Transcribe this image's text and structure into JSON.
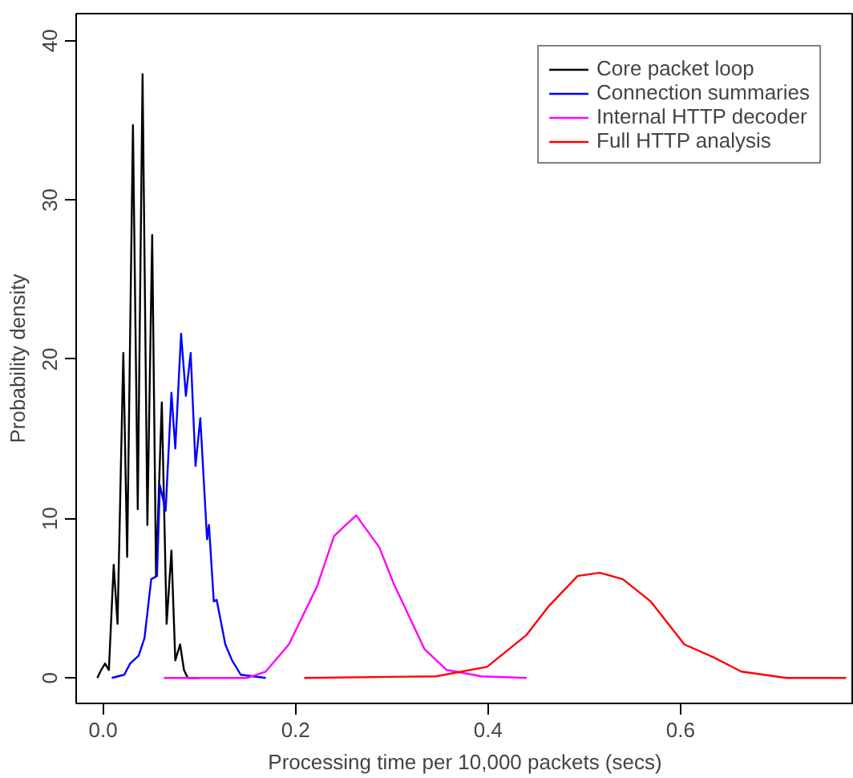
{
  "chart_data": {
    "type": "line",
    "xlabel": "Processing time per 10,000 packets (secs)",
    "ylabel": "Probability density",
    "xlim": [
      -0.028,
      0.78
    ],
    "ylim": [
      -1.6,
      41.7
    ],
    "xticks": [
      {
        "value": 0,
        "label": "0.0"
      },
      {
        "value": 0.2,
        "label": "0.2"
      },
      {
        "value": 0.4,
        "label": "0.4"
      },
      {
        "value": 0.6,
        "label": "0.6"
      }
    ],
    "yticks": [
      0,
      10,
      20,
      30,
      40
    ],
    "grid": false,
    "legend": "top right",
    "marker": "none",
    "line_style": "solid",
    "series": [
      {
        "name": "Core packet loop",
        "color": "#000000",
        "x": [
          -0.006,
          -0.002,
          0.002,
          0.006,
          0.011,
          0.015,
          0.021,
          0.025,
          0.031,
          0.036,
          0.041,
          0.046,
          0.051,
          0.055,
          0.061,
          0.066,
          0.071,
          0.075,
          0.08,
          0.084,
          0.088,
          0.1
        ],
        "values": [
          0,
          0.5,
          0.9,
          0.5,
          7.1,
          3.4,
          20.4,
          7.6,
          34.7,
          10.6,
          37.9,
          9.6,
          27.8,
          6.4,
          17.3,
          3.4,
          8.0,
          1.1,
          2.1,
          0.5,
          0,
          0
        ]
      },
      {
        "name": "Connection summaries",
        "color": "#0000ff",
        "x": [
          0.009,
          0.022,
          0.028,
          0.037,
          0.043,
          0.05,
          0.056,
          0.059,
          0.065,
          0.071,
          0.075,
          0.081,
          0.086,
          0.091,
          0.096,
          0.101,
          0.108,
          0.11,
          0.115,
          0.118,
          0.127,
          0.134,
          0.143,
          0.169
        ],
        "values": [
          0,
          0.2,
          0.9,
          1.4,
          2.5,
          6.2,
          6.4,
          12.1,
          10.5,
          17.9,
          14.4,
          21.6,
          17.7,
          20.4,
          13.3,
          16.3,
          8.7,
          9.6,
          4.8,
          4.9,
          2.1,
          1.1,
          0.2,
          0
        ]
      },
      {
        "name": "Internal HTTP decoder",
        "color": "#ff00ff",
        "x": [
          0.063,
          0.15,
          0.169,
          0.193,
          0.222,
          0.24,
          0.252,
          0.263,
          0.287,
          0.302,
          0.313,
          0.334,
          0.357,
          0.393,
          0.44
        ],
        "values": [
          0,
          0,
          0.4,
          2.1,
          5.7,
          8.9,
          9.6,
          10.2,
          8.2,
          5.9,
          4.5,
          1.8,
          0.5,
          0.1,
          0
        ]
      },
      {
        "name": "Full HTTP analysis",
        "color": "#ff0000",
        "x": [
          0.209,
          0.346,
          0.399,
          0.44,
          0.463,
          0.493,
          0.516,
          0.54,
          0.569,
          0.604,
          0.634,
          0.663,
          0.71,
          0.772
        ],
        "values": [
          0,
          0.1,
          0.7,
          2.7,
          4.5,
          6.4,
          6.6,
          6.2,
          4.8,
          2.1,
          1.3,
          0.4,
          0,
          0
        ]
      }
    ]
  }
}
